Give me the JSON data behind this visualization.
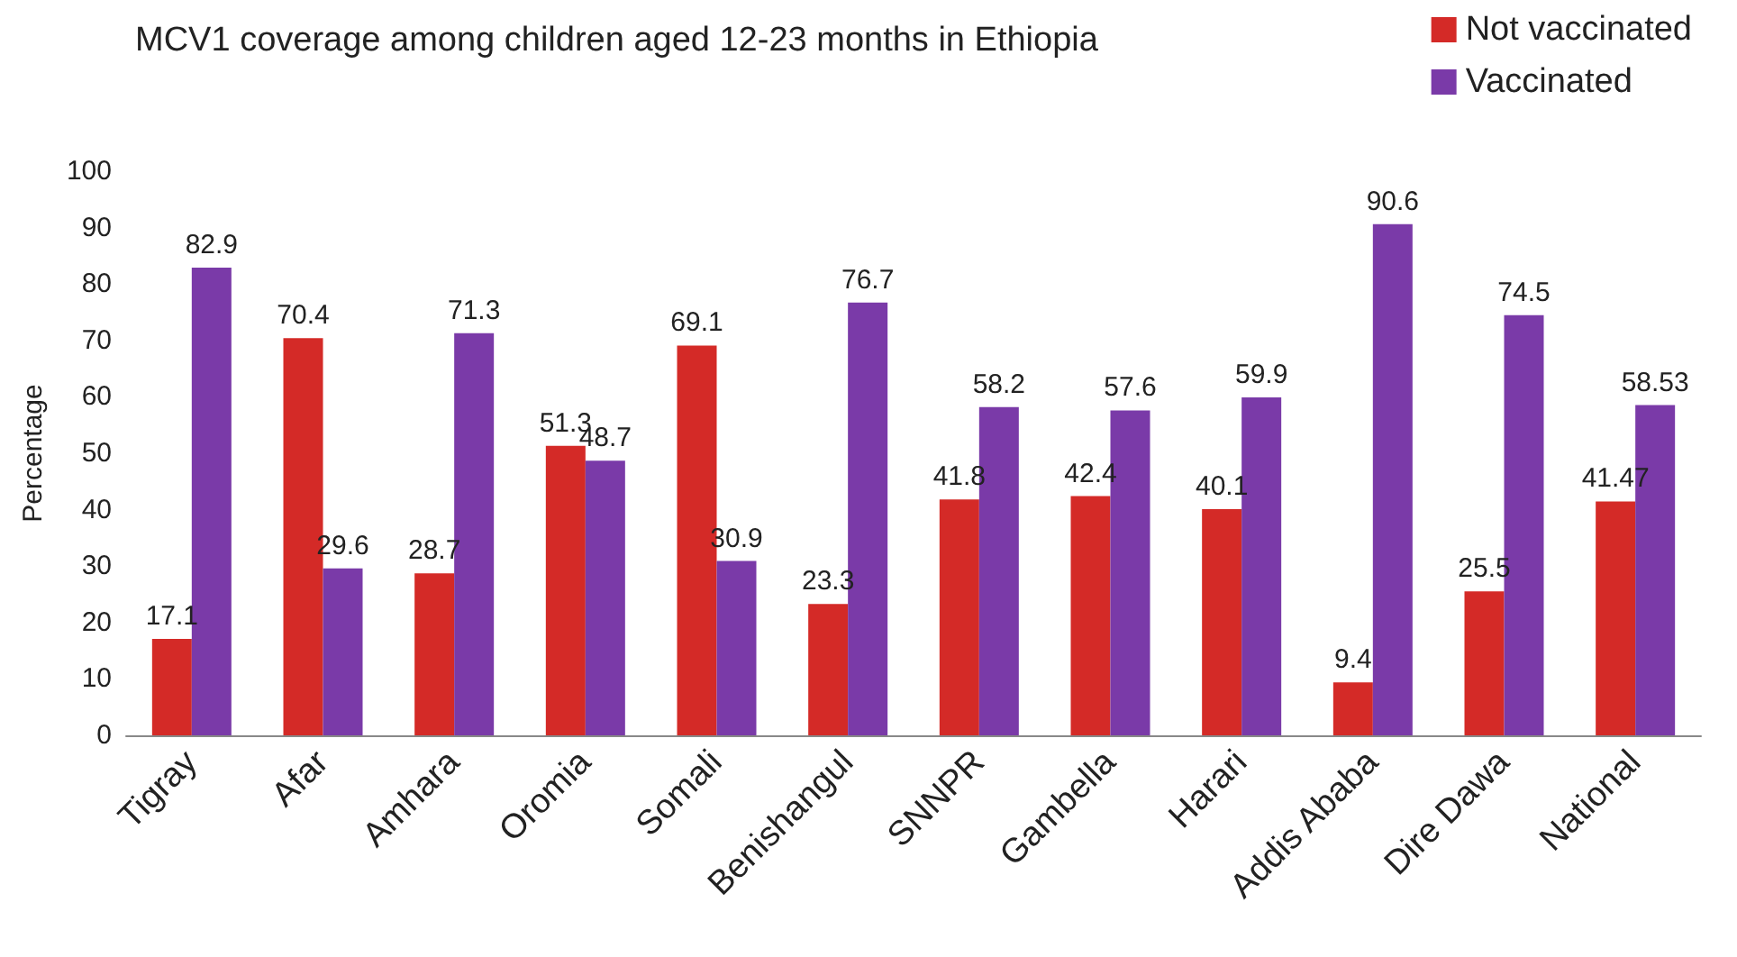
{
  "chart_data": {
    "type": "bar",
    "title": "MCV1 coverage among children aged 12-23 months in Ethiopia",
    "ylabel": "Percentage",
    "categories": [
      "Tigray",
      "Afar",
      "Amhara",
      "Oromia",
      "Somali",
      "Benishangul",
      "SNNPR",
      "Gambella",
      "Harari",
      "Addis Ababa",
      "Dire Dawa",
      "National"
    ],
    "series": [
      {
        "name": "Not vaccinated",
        "color": "#d42a27",
        "values": [
          17.1,
          70.4,
          28.7,
          51.3,
          69.1,
          23.3,
          41.8,
          42.4,
          40.1,
          9.4,
          25.5,
          41.47
        ]
      },
      {
        "name": "Vaccinated",
        "color": "#7a3aa8",
        "values": [
          82.9,
          29.6,
          71.3,
          48.7,
          30.9,
          76.7,
          58.2,
          57.6,
          59.9,
          90.6,
          74.5,
          58.53
        ]
      }
    ],
    "ylim": [
      0,
      100
    ],
    "yticks": [
      0,
      10,
      20,
      30,
      40,
      50,
      60,
      70,
      80,
      90,
      100
    ],
    "grid": false,
    "legend": "top right",
    "data_labels": true
  }
}
